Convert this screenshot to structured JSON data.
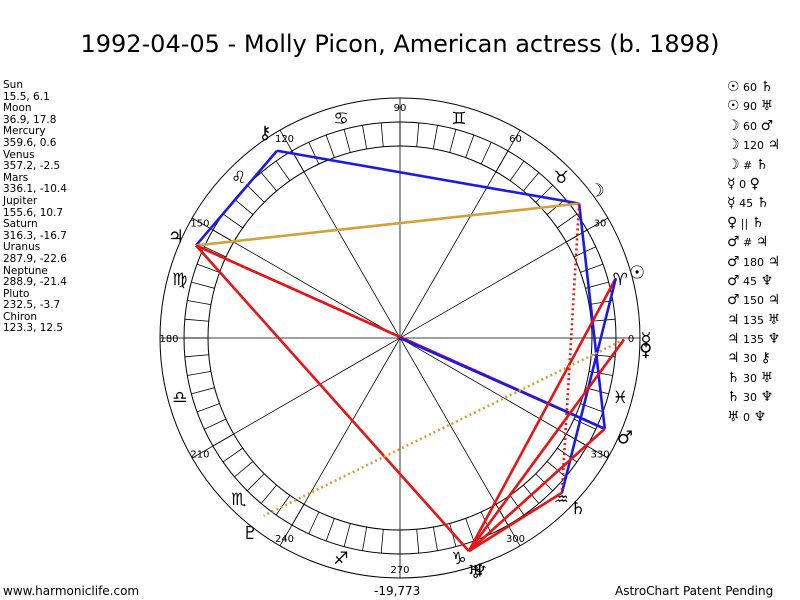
{
  "title": "1992-04-05 - Molly Picon, American actress (b. 1898)",
  "planets": [
    {
      "name": "Sun",
      "glyph": "☉",
      "values": "15.5, 6.1",
      "transit": 15.5,
      "natal": 6.1
    },
    {
      "name": "Moon",
      "glyph": "☽",
      "values": "36.9, 17.8",
      "transit": 36.9,
      "natal": 17.8
    },
    {
      "name": "Mercury",
      "glyph": "☿",
      "values": "359.6, 0.6",
      "transit": 359.6,
      "natal": 0.6
    },
    {
      "name": "Venus",
      "glyph": "♀",
      "values": "357.2, -2.5",
      "transit": 357.2,
      "natal": -2.5
    },
    {
      "name": "Mars",
      "glyph": "♂",
      "values": "336.1, -10.4",
      "transit": 336.1,
      "natal": -10.4
    },
    {
      "name": "Jupiter",
      "glyph": "♃",
      "values": "155.6, 10.7",
      "transit": 155.6,
      "natal": 10.7
    },
    {
      "name": "Saturn",
      "glyph": "♄",
      "values": "316.3, -16.7",
      "transit": 316.3,
      "natal": -16.7
    },
    {
      "name": "Uranus",
      "glyph": "♅",
      "values": "287.9, -22.6",
      "transit": 287.9,
      "natal": -22.6
    },
    {
      "name": "Neptune",
      "glyph": "♆",
      "values": "288.9, -21.4",
      "transit": 288.9,
      "natal": -21.4
    },
    {
      "name": "Pluto",
      "glyph": "♇",
      "values": "232.5, -3.7",
      "transit": 232.5,
      "natal": -3.7
    },
    {
      "name": "Chiron",
      "glyph": "⚷",
      "values": "123.3, 12.5",
      "transit": 123.3,
      "natal": 12.5
    }
  ],
  "aspects": [
    {
      "p1": "☉",
      "orb": "60",
      "p2": "♄"
    },
    {
      "p1": "☉",
      "orb": "90",
      "p2": "♅"
    },
    {
      "p1": "☽",
      "orb": "60",
      "p2": "♂"
    },
    {
      "p1": "☽",
      "orb": "120",
      "p2": "♃"
    },
    {
      "p1": "☽",
      "orb": "#",
      "p2": "♄"
    },
    {
      "p1": "☿",
      "orb": "0",
      "p2": "♀"
    },
    {
      "p1": "☿",
      "orb": "45",
      "p2": "♄"
    },
    {
      "p1": "♀",
      "orb": "||",
      "p2": "♄"
    },
    {
      "p1": "♂",
      "orb": "#",
      "p2": "♃"
    },
    {
      "p1": "♂",
      "orb": "180",
      "p2": "♃"
    },
    {
      "p1": "♂",
      "orb": "45",
      "p2": "♆"
    },
    {
      "p1": "♂",
      "orb": "150",
      "p2": "♃"
    },
    {
      "p1": "♃",
      "orb": "135",
      "p2": "♅"
    },
    {
      "p1": "♃",
      "orb": "135",
      "p2": "♆"
    },
    {
      "p1": "♃",
      "orb": "30",
      "p2": "⚷"
    },
    {
      "p1": "♄",
      "orb": "30",
      "p2": "♅"
    },
    {
      "p1": "♄",
      "orb": "30",
      "p2": "♆"
    },
    {
      "p1": "♅",
      "orb": "0",
      "p2": "♆"
    }
  ],
  "wheel": {
    "degree_labels": [
      "90",
      "60",
      "30",
      "0",
      "330",
      "300",
      "270",
      "240",
      "210",
      "180",
      "150",
      "120"
    ],
    "signs": [
      "♈",
      "♉",
      "♊",
      "♋",
      "♌",
      "♍",
      "♎",
      "♏",
      "♐",
      "♑",
      "♒",
      "♓"
    ]
  },
  "aspect_lines": [
    {
      "from": "Moon",
      "to": "Chiron",
      "color": "#1a1ae6",
      "style": "solid"
    },
    {
      "from": "Chiron",
      "to": "Jupiter",
      "color": "#1a1ae6",
      "style": "solid"
    },
    {
      "from": "Moon",
      "to": "Jupiter",
      "color": "#d4a037",
      "style": "solid"
    },
    {
      "from": "Jupiter",
      "to": "Uranus",
      "color": "#e61414",
      "style": "solid"
    },
    {
      "from": "Jupiter",
      "to": "Mars",
      "color": "#e61414",
      "style": "solid"
    },
    {
      "from": "Jupiter",
      "to": "Mars",
      "color": "#e61414",
      "style": "dotted"
    },
    {
      "from": "Center",
      "to": "Mars",
      "color": "#1a1ae6",
      "style": "solid"
    },
    {
      "from": "Moon",
      "to": "Mars",
      "color": "#1a1ae6",
      "style": "solid"
    },
    {
      "from": "Sun",
      "to": "Uranus",
      "color": "#e61414",
      "style": "solid"
    },
    {
      "from": "Sun",
      "to": "Saturn",
      "color": "#1a1ae6",
      "style": "solid"
    },
    {
      "from": "Mercury",
      "to": "Pluto",
      "color": "#d4a037",
      "style": "dotted"
    },
    {
      "from": "Mercury",
      "to": "Uranus",
      "color": "#e61414",
      "style": "solid"
    },
    {
      "from": "Saturn",
      "to": "Uranus",
      "color": "#e61414",
      "style": "solid"
    },
    {
      "from": "Mars",
      "to": "Uranus",
      "color": "#e61414",
      "style": "solid"
    },
    {
      "from": "Moon",
      "to": "Saturn",
      "color": "#e61414",
      "style": "dotted"
    }
  ],
  "footer": {
    "left": "www.harmoniclife.com",
    "center": "-19,773",
    "right": "AstroChart Patent Pending"
  }
}
